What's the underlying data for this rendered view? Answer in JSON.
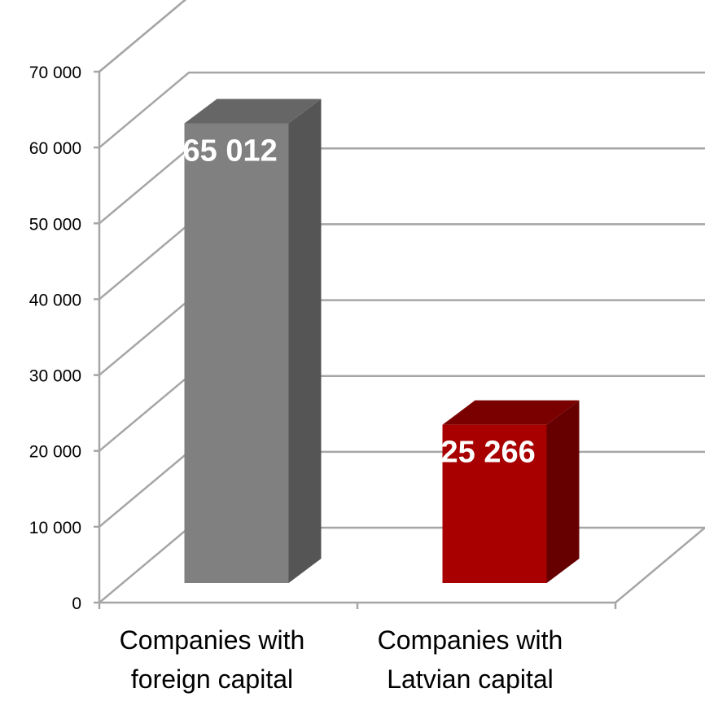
{
  "chart_data": {
    "type": "bar",
    "style": "3d",
    "title": "",
    "xlabel": "",
    "ylabel": "",
    "ylim": [
      0,
      70000
    ],
    "ytick_values": [
      0,
      10000,
      20000,
      30000,
      40000,
      50000,
      60000,
      70000
    ],
    "ytick_labels": [
      "0",
      "10 000",
      "20 000",
      "30 000",
      "40 000",
      "50 000",
      "60 000",
      "70 000"
    ],
    "grid": true,
    "legend": "none",
    "categories": [
      [
        "Companies with",
        "foreign capital"
      ],
      [
        "Companies with",
        "Latvian capital"
      ]
    ],
    "values": [
      65012,
      25266
    ],
    "data_labels": [
      "65 012",
      "25 266"
    ],
    "colors": {
      "bar_1_front": "#808080",
      "bar_1_side": "#555555",
      "bar_1_top": "#666666",
      "bar_2_front": "#a80000",
      "bar_2_side": "#660000",
      "bar_2_top": "#7a0000",
      "gridline": "#a6a6a6",
      "data_label": "#ffffff"
    }
  }
}
